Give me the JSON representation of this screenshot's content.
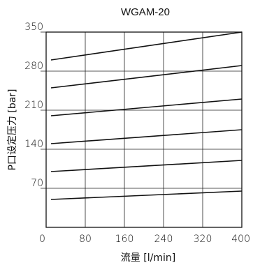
{
  "chart_data": {
    "type": "line",
    "title": "WGAM-20",
    "xlabel": "流量 [l/min]",
    "ylabel": "P口设定压力 [bar]",
    "xlim": [
      0,
      400
    ],
    "ylim": [
      0,
      350
    ],
    "xticks": [
      "0",
      "80",
      "160",
      "240",
      "320",
      "400"
    ],
    "yticks": [
      "70",
      "140",
      "210",
      "280",
      "350"
    ],
    "grid": true,
    "series": [
      {
        "x": [
          10,
          400
        ],
        "values": [
          300,
          350
        ]
      },
      {
        "x": [
          10,
          400
        ],
        "values": [
          250,
          290
        ]
      },
      {
        "x": [
          10,
          400
        ],
        "values": [
          200,
          230
        ]
      },
      {
        "x": [
          10,
          400
        ],
        "values": [
          150,
          175
        ]
      },
      {
        "x": [
          10,
          400
        ],
        "values": [
          100,
          120
        ]
      },
      {
        "x": [
          10,
          400
        ],
        "values": [
          50,
          65
        ]
      }
    ]
  }
}
